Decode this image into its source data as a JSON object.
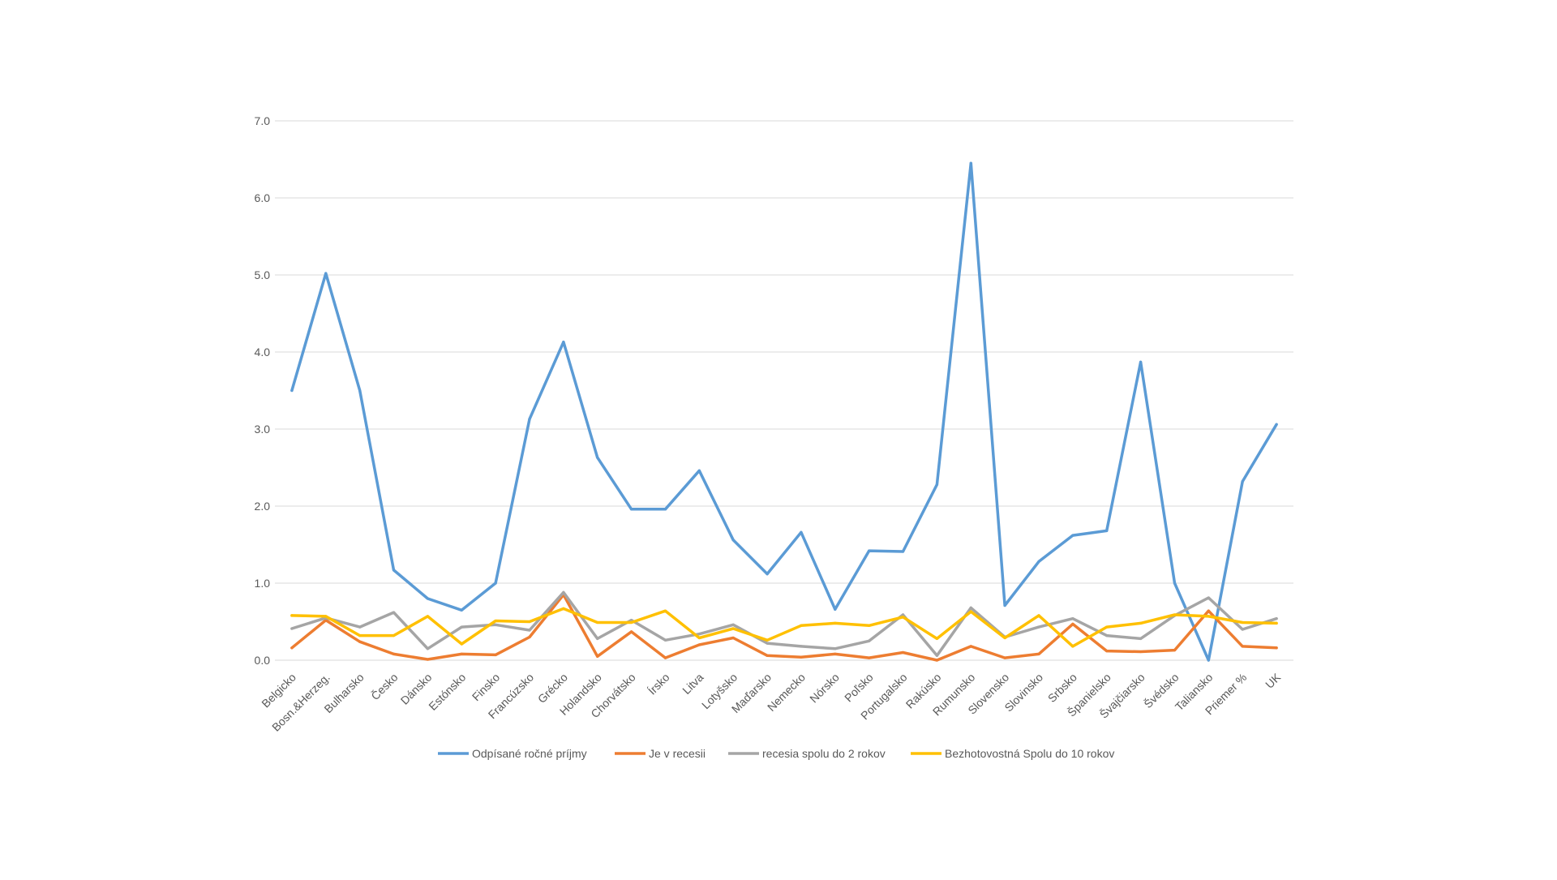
{
  "chart_data": {
    "type": "line",
    "title": "",
    "xlabel": "",
    "ylabel": "",
    "ylim": [
      0,
      7
    ],
    "yticks": [
      "0.0",
      "1.0",
      "2.0",
      "3.0",
      "4.0",
      "5.0",
      "6.0",
      "7.0"
    ],
    "grid": true,
    "legend_position": "bottom",
    "categories": [
      "Belgicko",
      "Bosn.&Herzeg.",
      "Bulharsko",
      "Česko",
      "Dánsko",
      "Estónsko",
      "Finsko",
      "Francúzsko",
      "Grécko",
      "Holandsko",
      "Chorvátsko",
      "Írsko",
      "Litva",
      "Lotyšsko",
      "Maďarsko",
      "Nemecko",
      "Nórsko",
      "Poľsko",
      "Portugalsko",
      "Rakúsko",
      "Rumunsko",
      "Slovensko",
      "Slovinsko",
      "Srbsko",
      "Španielsko",
      "Švajčiarsko",
      "Švédsko",
      "Taliansko",
      "Priemer %",
      "UK"
    ],
    "series": [
      {
        "name": "Odpísané ročné príjmy",
        "color": "#5B9BD5",
        "values": [
          3.5,
          5.02,
          3.5,
          1.17,
          0.8,
          0.65,
          1.0,
          3.13,
          4.13,
          2.63,
          1.96,
          1.96,
          2.46,
          1.56,
          1.12,
          1.66,
          0.66,
          1.42,
          1.41,
          2.28,
          6.45,
          0.71,
          1.28,
          1.62,
          1.68,
          3.87,
          1.0,
          0.0,
          2.32,
          3.06
        ]
      },
      {
        "name": "Je v recesii",
        "color": "#ED7D31",
        "values": [
          0.16,
          0.52,
          0.24,
          0.08,
          0.01,
          0.08,
          0.07,
          0.3,
          0.85,
          0.05,
          0.37,
          0.03,
          0.2,
          0.29,
          0.06,
          0.04,
          0.08,
          0.03,
          0.1,
          0.0,
          0.18,
          0.03,
          0.08,
          0.47,
          0.12,
          0.11,
          0.13,
          0.64,
          0.18,
          0.16
        ]
      },
      {
        "name": "recesia spolu do 2 rokov",
        "color": "#A5A5A5",
        "values": [
          0.41,
          0.55,
          0.43,
          0.62,
          0.15,
          0.43,
          0.46,
          0.39,
          0.88,
          0.28,
          0.52,
          0.26,
          0.34,
          0.46,
          0.22,
          0.18,
          0.15,
          0.25,
          0.59,
          0.06,
          0.68,
          0.3,
          0.43,
          0.54,
          0.32,
          0.28,
          0.58,
          0.81,
          0.4,
          0.54
        ]
      },
      {
        "name": "Bezhotovostná  Spolu do 10 rokov",
        "color": "#FFC000",
        "values": [
          0.58,
          0.57,
          0.32,
          0.32,
          0.57,
          0.21,
          0.51,
          0.5,
          0.67,
          0.49,
          0.49,
          0.64,
          0.29,
          0.41,
          0.26,
          0.45,
          0.48,
          0.45,
          0.56,
          0.28,
          0.63,
          0.29,
          0.58,
          0.18,
          0.43,
          0.48,
          0.59,
          0.57,
          0.49,
          0.48
        ]
      }
    ]
  }
}
